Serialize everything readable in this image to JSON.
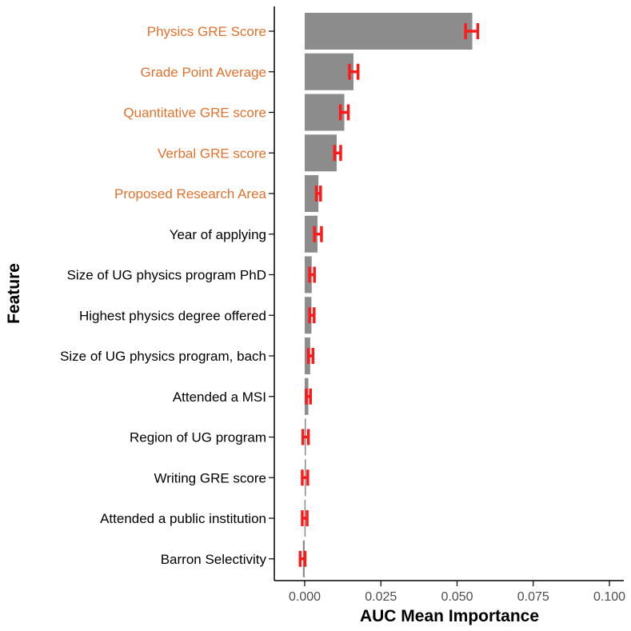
{
  "chart_data": {
    "type": "bar",
    "orientation": "horizontal",
    "xlabel": "AUC Mean Importance",
    "ylabel": "Feature",
    "xlim": [
      -0.01,
      0.1
    ],
    "xticks": [
      "0.000",
      "0.025",
      "0.050",
      "0.075",
      "0.100"
    ],
    "xtick_values": [
      0,
      0.025,
      0.05,
      0.075,
      0.1
    ],
    "grid": false,
    "categories": [
      "Physics GRE Score",
      "Grade Point Average",
      "Quantitative GRE score",
      "Verbal GRE score",
      "Proposed Research Area",
      "Year of applying",
      "Size of UG physics program PhD",
      "Highest physics degree offered",
      "Size of UG physics program, bach",
      "Attended a MSI",
      "Region of UG program",
      "Writing GRE score",
      "Attended a public institution",
      "Barron Selectivity"
    ],
    "highlighted": [
      true,
      true,
      true,
      true,
      true,
      false,
      false,
      false,
      false,
      false,
      false,
      false,
      false,
      false
    ],
    "values": [
      0.055,
      0.016,
      0.013,
      0.0105,
      0.0045,
      0.0042,
      0.0023,
      0.0022,
      0.0018,
      0.0012,
      0.0002,
      0.0001,
      -0.0001,
      -0.0006
    ],
    "error_low": [
      0.0528,
      0.0147,
      0.0117,
      0.0098,
      0.0038,
      0.0032,
      0.0016,
      0.0016,
      0.0012,
      0.0005,
      -0.0006,
      -0.0008,
      -0.0008,
      -0.0015
    ],
    "error_high": [
      0.0568,
      0.0175,
      0.0143,
      0.0118,
      0.0052,
      0.0055,
      0.0032,
      0.0031,
      0.0027,
      0.0019,
      0.0012,
      0.001,
      0.0008,
      0.0001
    ],
    "colors": {
      "bar": "#8c8c8c",
      "error": "#ff1a1a",
      "highlight_label": "#e0722e",
      "label": "#000000",
      "axis": "#000000"
    }
  }
}
